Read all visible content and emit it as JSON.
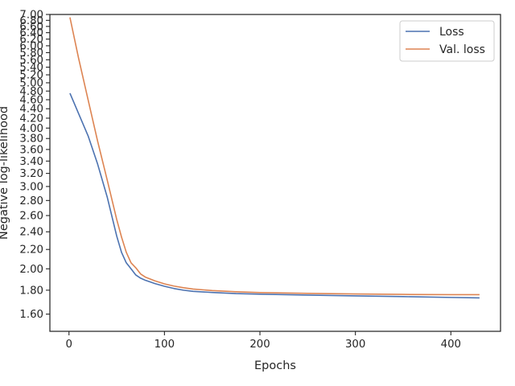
{
  "chart_data": {
    "type": "line",
    "xlabel": "Epochs",
    "ylabel": "Negative log-likelihood",
    "xlim": [
      -20,
      452
    ],
    "ylim": [
      1.47,
      7.0
    ],
    "y_scale": "log",
    "grid": false,
    "legend_position": "top-right",
    "x_ticks": [
      "0",
      "100",
      "200",
      "300",
      "400"
    ],
    "y_ticks": [
      "1.60",
      "1.80",
      "2.00",
      "2.20",
      "2.40",
      "2.60",
      "2.80",
      "3.00",
      "3.20",
      "3.40",
      "3.60",
      "3.80",
      "4.00",
      "4.20",
      "4.40",
      "4.60",
      "4.80",
      "5.00",
      "5.20",
      "5.40",
      "5.60",
      "5.80",
      "6.00",
      "6.20",
      "6.40",
      "6.60",
      "6.80",
      "7.00"
    ],
    "x": [
      1,
      10,
      20,
      30,
      40,
      50,
      55,
      60,
      65,
      70,
      75,
      80,
      90,
      100,
      110,
      120,
      130,
      150,
      175,
      200,
      250,
      300,
      350,
      400,
      430
    ],
    "series": [
      {
        "name": "Loss",
        "color": "#4c72b0",
        "values": [
          4.75,
          4.3,
          3.85,
          3.35,
          2.85,
          2.35,
          2.17,
          2.06,
          2.0,
          1.94,
          1.91,
          1.89,
          1.86,
          1.835,
          1.815,
          1.8,
          1.79,
          1.78,
          1.77,
          1.765,
          1.757,
          1.75,
          1.744,
          1.737,
          1.733
        ]
      },
      {
        "name": "Val. loss",
        "color": "#dd8452",
        "values": [
          6.9,
          5.65,
          4.6,
          3.75,
          3.1,
          2.55,
          2.34,
          2.17,
          2.06,
          2.01,
          1.95,
          1.92,
          1.885,
          1.857,
          1.837,
          1.822,
          1.81,
          1.797,
          1.786,
          1.779,
          1.772,
          1.767,
          1.763,
          1.761,
          1.761
        ]
      }
    ]
  }
}
